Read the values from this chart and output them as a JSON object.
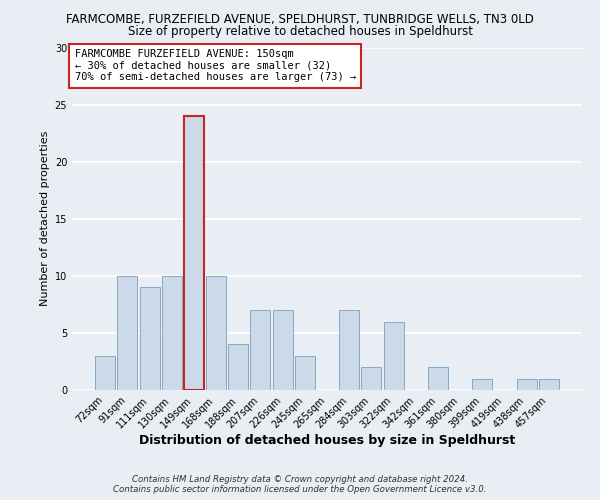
{
  "title_line1": "FARMCOMBE, FURZEFIELD AVENUE, SPELDHURST, TUNBRIDGE WELLS, TN3 0LD",
  "title_line2": "Size of property relative to detached houses in Speldhurst",
  "xlabel": "Distribution of detached houses by size in Speldhurst",
  "ylabel": "Number of detached properties",
  "categories": [
    "72sqm",
    "91sqm",
    "111sqm",
    "130sqm",
    "149sqm",
    "168sqm",
    "188sqm",
    "207sqm",
    "226sqm",
    "245sqm",
    "265sqm",
    "284sqm",
    "303sqm",
    "322sqm",
    "342sqm",
    "361sqm",
    "380sqm",
    "399sqm",
    "419sqm",
    "438sqm",
    "457sqm"
  ],
  "values": [
    3,
    10,
    9,
    10,
    24,
    10,
    4,
    7,
    7,
    3,
    0,
    7,
    2,
    6,
    0,
    2,
    0,
    1,
    0,
    1,
    1
  ],
  "bar_color": "#ccd9e8",
  "bar_edge_color": "#7aa0c0",
  "highlight_bar_index": 4,
  "highlight_bar_edge_color": "#cc2222",
  "ylim": [
    0,
    30
  ],
  "yticks": [
    0,
    5,
    10,
    15,
    20,
    25,
    30
  ],
  "annotation_box_text_line1": "FARMCOMBE FURZEFIELD AVENUE: 150sqm",
  "annotation_box_text_line2": "← 30% of detached houses are smaller (32)",
  "annotation_box_text_line3": "70% of semi-detached houses are larger (73) →",
  "annotation_box_edge_color": "#cc2222",
  "annotation_box_facecolor": "#ffffff",
  "footer_line1": "Contains HM Land Registry data © Crown copyright and database right 2024.",
  "footer_line2": "Contains public sector information licensed under the Open Government Licence v3.0.",
  "fig_facecolor": "#e8eef4",
  "plot_facecolor": "#e8eef4",
  "grid_color": "#ffffff",
  "title_fontsize": 8.5,
  "subtitle_fontsize": 8.5,
  "xlabel_fontsize": 9,
  "ylabel_fontsize": 8,
  "tick_fontsize": 7,
  "footer_fontsize": 6.2,
  "annotation_fontsize": 7.5
}
